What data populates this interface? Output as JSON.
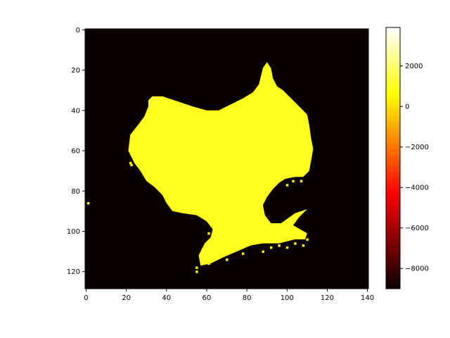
{
  "chart_data": {
    "type": "heatmap",
    "title": "",
    "xlabel": "",
    "ylabel": "",
    "image_shape": [
      129,
      141
    ],
    "xlim": [
      -0.5,
      140.5
    ],
    "ylim": [
      128.5,
      -0.5
    ],
    "x_ticks": [
      0,
      20,
      40,
      60,
      80,
      100,
      120,
      140
    ],
    "y_ticks": [
      0,
      20,
      40,
      60,
      80,
      100,
      120
    ],
    "colormap": "hot",
    "background_value": -9000,
    "interior_value": 1000,
    "colorbar": {
      "min": -9000,
      "max": 3900,
      "ticks": [
        2000,
        0,
        -2000,
        -4000,
        -6000,
        -8000
      ],
      "tick_labels": [
        "2000",
        "0",
        "−2000",
        "−4000",
        "−6000",
        "−8000"
      ]
    },
    "region_outline_data_coords": [
      [
        31,
        35
      ],
      [
        33,
        33
      ],
      [
        38,
        33
      ],
      [
        41,
        34
      ],
      [
        47,
        36
      ],
      [
        53,
        38
      ],
      [
        60,
        40
      ],
      [
        66,
        40
      ],
      [
        72,
        37
      ],
      [
        78,
        34
      ],
      [
        83,
        31
      ],
      [
        86,
        27
      ],
      [
        88,
        19
      ],
      [
        90,
        16
      ],
      [
        92,
        19
      ],
      [
        93,
        24
      ],
      [
        95,
        28
      ],
      [
        98,
        30
      ],
      [
        101,
        33
      ],
      [
        104,
        36
      ],
      [
        107,
        39
      ],
      [
        110,
        42
      ],
      [
        111,
        47
      ],
      [
        112,
        54
      ],
      [
        113,
        59
      ],
      [
        112,
        65
      ],
      [
        111,
        70
      ],
      [
        108,
        73
      ],
      [
        104,
        73
      ],
      [
        99,
        74
      ],
      [
        96,
        76
      ],
      [
        93,
        79
      ],
      [
        90,
        83
      ],
      [
        88,
        87
      ],
      [
        89,
        92
      ],
      [
        92,
        96
      ],
      [
        97,
        96
      ],
      [
        104,
        91
      ],
      [
        110,
        89
      ],
      [
        106,
        93
      ],
      [
        103,
        97
      ],
      [
        110,
        101
      ],
      [
        109,
        104
      ],
      [
        104,
        104
      ],
      [
        96,
        106
      ],
      [
        88,
        106
      ],
      [
        82,
        107
      ],
      [
        75,
        110
      ],
      [
        68,
        113
      ],
      [
        62,
        116
      ],
      [
        57,
        117
      ],
      [
        56,
        112
      ],
      [
        59,
        106
      ],
      [
        62,
        103
      ],
      [
        63,
        99
      ],
      [
        60,
        95
      ],
      [
        55,
        92
      ],
      [
        48,
        91
      ],
      [
        43,
        90
      ],
      [
        40,
        86
      ],
      [
        38,
        82
      ],
      [
        34,
        78
      ],
      [
        30,
        75
      ],
      [
        27,
        70
      ],
      [
        24,
        66
      ],
      [
        21,
        60
      ],
      [
        22,
        52
      ],
      [
        26,
        47
      ],
      [
        29,
        43
      ],
      [
        31,
        38
      ]
    ],
    "speckles_data_coords": [
      [
        22,
        66
      ],
      [
        22.5,
        67
      ],
      [
        1,
        86
      ],
      [
        103,
        75
      ],
      [
        100,
        77
      ],
      [
        107,
        75
      ],
      [
        88,
        110
      ],
      [
        92,
        108
      ],
      [
        96,
        107
      ],
      [
        100,
        108
      ],
      [
        104,
        106
      ],
      [
        108,
        107
      ],
      [
        110,
        104
      ],
      [
        78,
        111
      ],
      [
        70,
        114
      ],
      [
        61,
        116
      ],
      [
        55,
        118
      ],
      [
        55,
        120
      ],
      [
        58,
        109
      ],
      [
        61,
        101
      ]
    ]
  }
}
